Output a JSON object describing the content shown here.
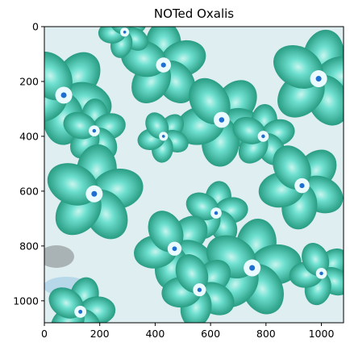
{
  "title": "NOTed Oxalis",
  "image": {
    "width": 1080,
    "height": 1080,
    "background_color": "#dfeef0",
    "flower_color": "#2a9d84",
    "flower_light_color": "#6fe0d0",
    "center_color": "#1f6fd0"
  },
  "axes": {
    "x_ticks": [
      0,
      200,
      400,
      600,
      800,
      1000
    ],
    "y_ticks": [
      0,
      200,
      400,
      600,
      800,
      1000
    ],
    "x_tick_labels": [
      "0",
      "200",
      "400",
      "600",
      "800",
      "1000"
    ],
    "y_tick_labels": [
      "0",
      "200",
      "400",
      "600",
      "800",
      "1000"
    ]
  },
  "flowers": [
    {
      "cx": 430,
      "cy": 140,
      "r": 150
    },
    {
      "cx": 70,
      "cy": 250,
      "r": 170
    },
    {
      "cx": 180,
      "cy": 380,
      "r": 110
    },
    {
      "cx": 640,
      "cy": 340,
      "r": 160
    },
    {
      "cx": 790,
      "cy": 400,
      "r": 110
    },
    {
      "cx": 430,
      "cy": 400,
      "r": 90
    },
    {
      "cx": 180,
      "cy": 610,
      "r": 170
    },
    {
      "cx": 930,
      "cy": 580,
      "r": 150
    },
    {
      "cx": 620,
      "cy": 680,
      "r": 110
    },
    {
      "cx": 470,
      "cy": 810,
      "r": 140
    },
    {
      "cx": 750,
      "cy": 880,
      "r": 170
    },
    {
      "cx": 560,
      "cy": 960,
      "r": 130
    },
    {
      "cx": 990,
      "cy": 190,
      "r": 170
    },
    {
      "cx": 1000,
      "cy": 900,
      "r": 110
    },
    {
      "cx": 130,
      "cy": 1040,
      "r": 120
    },
    {
      "cx": 290,
      "cy": 20,
      "r": 90
    }
  ]
}
